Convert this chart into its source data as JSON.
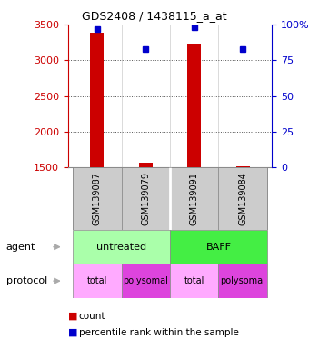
{
  "title": "GDS2408 / 1438115_a_at",
  "samples": [
    "GSM139087",
    "GSM139079",
    "GSM139091",
    "GSM139084"
  ],
  "counts": [
    3390,
    1570,
    3230,
    1520
  ],
  "percentiles": [
    97,
    83,
    98,
    83
  ],
  "ylim_left": [
    1500,
    3500
  ],
  "ylim_right": [
    0,
    100
  ],
  "yticks_left": [
    1500,
    2000,
    2500,
    3000,
    3500
  ],
  "yticks_right": [
    0,
    25,
    50,
    75,
    100
  ],
  "bar_color": "#cc0000",
  "dot_color": "#0000cc",
  "bar_width": 0.28,
  "agent_labels": [
    "untreated",
    "BAFF"
  ],
  "agent_colors": [
    "#aaffaa",
    "#44ee44"
  ],
  "protocol_labels": [
    "total",
    "polysomal",
    "total",
    "polysomal"
  ],
  "protocol_light": "#ffaaff",
  "protocol_dark": "#dd44dd",
  "sample_bg": "#cccccc",
  "bg_color": "#ffffff",
  "grid_color": "#555555",
  "left_tick_color": "#cc0000",
  "right_tick_color": "#0000cc",
  "arrow_color": "#aaaaaa"
}
